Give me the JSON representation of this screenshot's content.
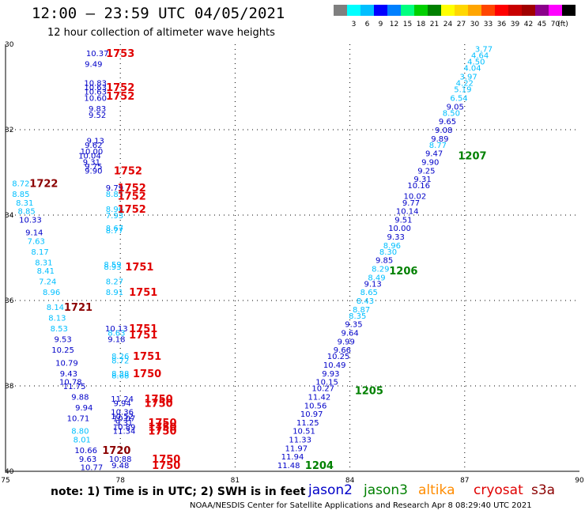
{
  "header": {
    "title": "12:00 – 23:59 UTC 04/05/2021",
    "subtitle": "12 hour collection of altimeter wave heights"
  },
  "legend": {
    "unit": "(ft)",
    "colors": [
      "#7f7f7f",
      "#00ffff",
      "#00bfff",
      "#0000ff",
      "#0080ff",
      "#00ff7f",
      "#00d000",
      "#008000",
      "#ffff00",
      "#ffd700",
      "#ffa500",
      "#ff4500",
      "#ff0000",
      "#c80000",
      "#a00000",
      "#8b008b",
      "#ff00ff",
      "#000000"
    ],
    "ticks": [
      "3",
      "6",
      "9",
      "12",
      "15",
      "18",
      "21",
      "24",
      "27",
      "30",
      "33",
      "36",
      "39",
      "42",
      "45",
      "70"
    ]
  },
  "axes": {
    "x_ticks": [
      "75",
      "78",
      "81",
      "84",
      "87",
      "90"
    ],
    "y_ticks": [
      "30",
      "32",
      "34",
      "36",
      "38",
      "40"
    ]
  },
  "satellites": [
    {
      "name": "jason2",
      "color": "#0000c8"
    },
    {
      "name": "jason3",
      "color": "#008000"
    },
    {
      "name": "altika",
      "color": "#ff8c00"
    },
    {
      "name": "cryosat",
      "color": "#e00000"
    },
    {
      "name": "s3a",
      "color": "#8b0000"
    }
  ],
  "footer": {
    "note": "note: 1) Time is in UTC; 2) SWH is in feet",
    "credit": "NOAA/NESDIS Center for Satellite Applications and Research   Apr  8 08:29:40 UTC 2021"
  },
  "chart_data": {
    "type": "scatter",
    "title": "12:00 – 23:59 UTC 04/05/2021",
    "xlim": [
      75,
      90
    ],
    "ylim": [
      30,
      40
    ],
    "grid": true,
    "series": [
      {
        "name": "jason3",
        "time_label": "1207",
        "label_pos": [
          87.2,
          32.6
        ],
        "points": [
          [
            87.5,
            30.1,
            "3.77"
          ],
          [
            87.4,
            30.25,
            "4.64"
          ],
          [
            87.3,
            30.4,
            "4.50"
          ],
          [
            87.2,
            30.55,
            "4.04"
          ],
          [
            87.1,
            30.75,
            "3.97"
          ],
          [
            87.0,
            30.9,
            "4.22"
          ],
          [
            86.95,
            31.05,
            "5.19"
          ],
          [
            86.85,
            31.25,
            "6.54"
          ],
          [
            86.75,
            31.45,
            "9.05"
          ],
          [
            86.65,
            31.6,
            "8.50"
          ],
          [
            86.55,
            31.8,
            "9.65"
          ],
          [
            86.45,
            32.0,
            "9.08"
          ],
          [
            86.35,
            32.2,
            "9.89"
          ],
          [
            86.3,
            32.35,
            "8.77"
          ],
          [
            86.2,
            32.55,
            "9.47"
          ],
          [
            86.1,
            32.75,
            "9.90"
          ],
          [
            86.0,
            32.95,
            "9.25"
          ],
          [
            85.9,
            33.15,
            "9.31"
          ],
          [
            85.8,
            33.3,
            "10.16"
          ],
          [
            85.7,
            33.55,
            "10.02"
          ],
          [
            85.6,
            33.7,
            "9.77"
          ],
          [
            85.5,
            33.9,
            "10.14"
          ],
          [
            85.4,
            34.1,
            "9.51"
          ],
          [
            85.3,
            34.3,
            "10.00"
          ],
          [
            85.2,
            34.5,
            "9.33"
          ],
          [
            85.1,
            34.7,
            "8.96"
          ],
          [
            85.0,
            34.85,
            "8.30"
          ],
          [
            84.9,
            35.05,
            "9.85"
          ],
          [
            84.8,
            35.25,
            "8.29"
          ],
          [
            84.7,
            35.45,
            "8.49"
          ],
          [
            84.6,
            35.6,
            "9.13"
          ]
        ]
      },
      {
        "name": "jason3",
        "time_label": "1206",
        "label_pos": [
          85.4,
          35.3
        ],
        "points": [
          [
            84.5,
            35.8,
            "8.65"
          ],
          [
            84.4,
            36.0,
            "8.43"
          ],
          [
            84.3,
            36.2,
            "8.87"
          ],
          [
            84.2,
            36.35,
            "8.35"
          ],
          [
            84.1,
            36.55,
            "9.35"
          ],
          [
            84.0,
            36.75,
            "9.64"
          ],
          [
            83.9,
            36.95,
            "9.99"
          ],
          [
            83.8,
            37.15,
            "9.66"
          ],
          [
            83.7,
            37.3,
            "10.25"
          ],
          [
            83.6,
            37.5,
            "10.49"
          ],
          [
            83.5,
            37.7,
            "9.93"
          ],
          [
            83.4,
            37.9,
            "10.15"
          ],
          [
            83.3,
            38.05,
            "10.27"
          ]
        ]
      },
      {
        "name": "jason3",
        "time_label": "1205",
        "label_pos": [
          84.5,
          38.1
        ],
        "points": [
          [
            83.2,
            38.25,
            "11.42"
          ],
          [
            83.1,
            38.45,
            "10.56"
          ],
          [
            83.0,
            38.65,
            "10.97"
          ],
          [
            82.9,
            38.85,
            "11.25"
          ],
          [
            82.8,
            39.05,
            "10.51"
          ],
          [
            82.7,
            39.25,
            "11.33"
          ],
          [
            82.6,
            39.45,
            "11.97"
          ],
          [
            82.5,
            39.65,
            "11.94"
          ],
          [
            82.4,
            39.85,
            "11.48"
          ]
        ]
      },
      {
        "name": "jason3",
        "time_label": "1204",
        "label_pos": [
          83.2,
          39.85
        ],
        "points": []
      },
      {
        "name": "cryosat",
        "time_label": "1753",
        "label_pos": [
          78.0,
          30.2
        ],
        "points": [
          [
            77.4,
            30.2,
            "10.37"
          ],
          [
            77.3,
            30.45,
            "9.49"
          ]
        ]
      },
      {
        "name": "cryosat",
        "time_label": "1752",
        "label_pos": [
          78.0,
          31.0
        ],
        "points": [
          [
            77.35,
            30.9,
            "10.83"
          ],
          [
            77.35,
            31.0,
            "10.63"
          ],
          [
            77.35,
            31.1,
            "10.63"
          ],
          [
            77.35,
            31.25,
            "10.60"
          ],
          [
            77.4,
            31.5,
            "9.83"
          ],
          [
            77.4,
            31.65,
            "9.52"
          ],
          [
            77.35,
            32.25,
            "9.13"
          ],
          [
            77.3,
            32.35,
            "9.62"
          ],
          [
            77.25,
            32.5,
            "10.00"
          ],
          [
            77.2,
            32.6,
            "10.04"
          ],
          [
            77.25,
            32.75,
            "9.31"
          ],
          [
            77.3,
            32.85,
            "9.75"
          ],
          [
            77.3,
            32.95,
            "9.90"
          ]
        ]
      },
      {
        "name": "cryosat",
        "time_label": "1752",
        "label_pos": [
          78.0,
          31.2
        ],
        "points": []
      },
      {
        "name": "cryosat",
        "time_label": "1752",
        "label_pos": [
          78.2,
          32.95
        ],
        "points": []
      },
      {
        "name": "cryosat",
        "time_label": "1752",
        "label_pos": [
          78.3,
          33.35
        ],
        "points": [
          [
            77.85,
            33.35,
            "9.79"
          ],
          [
            77.85,
            33.5,
            "8.85"
          ]
        ]
      },
      {
        "name": "cryosat",
        "time_label": "1752",
        "label_pos": [
          78.3,
          33.55
        ],
        "points": []
      },
      {
        "name": "cryosat",
        "time_label": "1752",
        "label_pos": [
          78.3,
          33.85
        ],
        "points": [
          [
            77.85,
            33.85,
            "8.96"
          ],
          [
            77.85,
            34.0,
            "7.93"
          ],
          [
            77.85,
            34.3,
            "8.67"
          ],
          [
            77.85,
            34.35,
            "8.77"
          ]
        ]
      },
      {
        "name": "cryosat",
        "time_label": "1751",
        "label_pos": [
          78.5,
          35.2
        ],
        "points": [
          [
            77.8,
            35.15,
            "8.59"
          ],
          [
            77.8,
            35.2,
            "8.93"
          ],
          [
            77.85,
            35.55,
            "8.27"
          ],
          [
            77.85,
            35.8,
            "8.91"
          ]
        ]
      },
      {
        "name": "cryosat",
        "time_label": "1751",
        "label_pos": [
          78.6,
          35.8
        ],
        "points": []
      },
      {
        "name": "cryosat",
        "time_label": "1751",
        "label_pos": [
          78.6,
          36.65
        ],
        "points": [
          [
            77.9,
            36.65,
            "10.13"
          ],
          [
            77.9,
            36.75,
            "8.63"
          ],
          [
            77.9,
            36.9,
            "9.18"
          ]
        ]
      },
      {
        "name": "cryosat",
        "time_label": "1751",
        "label_pos": [
          78.6,
          36.8
        ],
        "points": []
      },
      {
        "name": "cryosat",
        "time_label": "1751",
        "label_pos": [
          78.7,
          37.3
        ],
        "points": [
          [
            78.0,
            37.3,
            "8.26"
          ],
          [
            78.0,
            37.4,
            "8.72"
          ]
        ]
      },
      {
        "name": "cryosat",
        "time_label": "1750",
        "label_pos": [
          78.7,
          37.7
        ],
        "points": [
          [
            78.0,
            37.7,
            "8.38"
          ],
          [
            78.0,
            37.75,
            "8.68"
          ]
        ]
      },
      {
        "name": "cryosat",
        "time_label": "1750",
        "label_pos": [
          79.0,
          38.3
        ],
        "points": [
          [
            78.05,
            38.3,
            "11.24"
          ],
          [
            78.05,
            38.4,
            "9.94"
          ],
          [
            78.05,
            38.6,
            "10.36"
          ],
          [
            78.05,
            38.7,
            "10.52"
          ],
          [
            78.1,
            38.75,
            "10.07"
          ],
          [
            78.1,
            38.85,
            "9.31"
          ],
          [
            78.1,
            38.95,
            "10.89"
          ],
          [
            78.1,
            39.05,
            "11.34"
          ]
        ]
      },
      {
        "name": "cryosat",
        "time_label": "1750",
        "label_pos": [
          79.0,
          38.4
        ],
        "points": []
      },
      {
        "name": "cryosat",
        "time_label": "1750",
        "label_pos": [
          79.1,
          38.85
        ],
        "points": []
      },
      {
        "name": "cryosat",
        "time_label": "1750",
        "label_pos": [
          79.1,
          38.95
        ],
        "points": []
      },
      {
        "name": "cryosat",
        "time_label": "1750",
        "label_pos": [
          79.1,
          39.05
        ],
        "points": []
      },
      {
        "name": "cryosat",
        "time_label": "1750",
        "label_pos": [
          79.2,
          39.7
        ],
        "points": [
          [
            78.0,
            39.7,
            "10.88"
          ],
          [
            78.0,
            39.85,
            "9.48"
          ]
        ]
      },
      {
        "name": "cryosat",
        "time_label": "1750",
        "label_pos": [
          79.2,
          39.85
        ],
        "points": []
      },
      {
        "name": "s3a",
        "time_label": "1722",
        "label_pos": [
          76.0,
          33.25
        ],
        "points": [
          [
            75.4,
            33.25,
            "8.72"
          ],
          [
            75.4,
            33.5,
            "8.85"
          ],
          [
            75.5,
            33.7,
            "8.31"
          ],
          [
            75.55,
            33.9,
            "8.85"
          ],
          [
            75.65,
            34.1,
            "10.33"
          ],
          [
            75.75,
            34.4,
            "9.14"
          ],
          [
            75.8,
            34.6,
            "7.63"
          ],
          [
            75.9,
            34.85,
            "8.17"
          ],
          [
            76.0,
            35.1,
            "8.31"
          ],
          [
            76.05,
            35.3,
            "8.41"
          ],
          [
            76.1,
            35.55,
            "7.24"
          ],
          [
            76.2,
            35.8,
            "8.96"
          ]
        ]
      },
      {
        "name": "s3a",
        "time_label": "1721",
        "label_pos": [
          76.9,
          36.15
        ],
        "points": [
          [
            76.3,
            36.15,
            "8.14"
          ],
          [
            76.35,
            36.4,
            "8.13"
          ],
          [
            76.4,
            36.65,
            "8.53"
          ],
          [
            76.5,
            36.9,
            "9.53"
          ],
          [
            76.5,
            37.15,
            "10.25"
          ],
          [
            76.6,
            37.45,
            "10.79"
          ],
          [
            76.65,
            37.7,
            "9.43"
          ],
          [
            76.7,
            37.9,
            "10.78"
          ],
          [
            76.8,
            38.0,
            "11.75"
          ],
          [
            76.95,
            38.25,
            "9.88"
          ],
          [
            77.05,
            38.5,
            "9.94"
          ],
          [
            76.9,
            38.75,
            "10.71"
          ],
          [
            76.95,
            39.05,
            "8.80"
          ],
          [
            77.0,
            39.25,
            "8.01"
          ],
          [
            77.1,
            39.5,
            "10.66"
          ],
          [
            77.15,
            39.7,
            "9.63"
          ],
          [
            77.25,
            39.9,
            "10.77"
          ]
        ]
      },
      {
        "name": "s3a",
        "time_label": "1720",
        "label_pos": [
          77.9,
          39.5
        ],
        "points": []
      }
    ]
  }
}
